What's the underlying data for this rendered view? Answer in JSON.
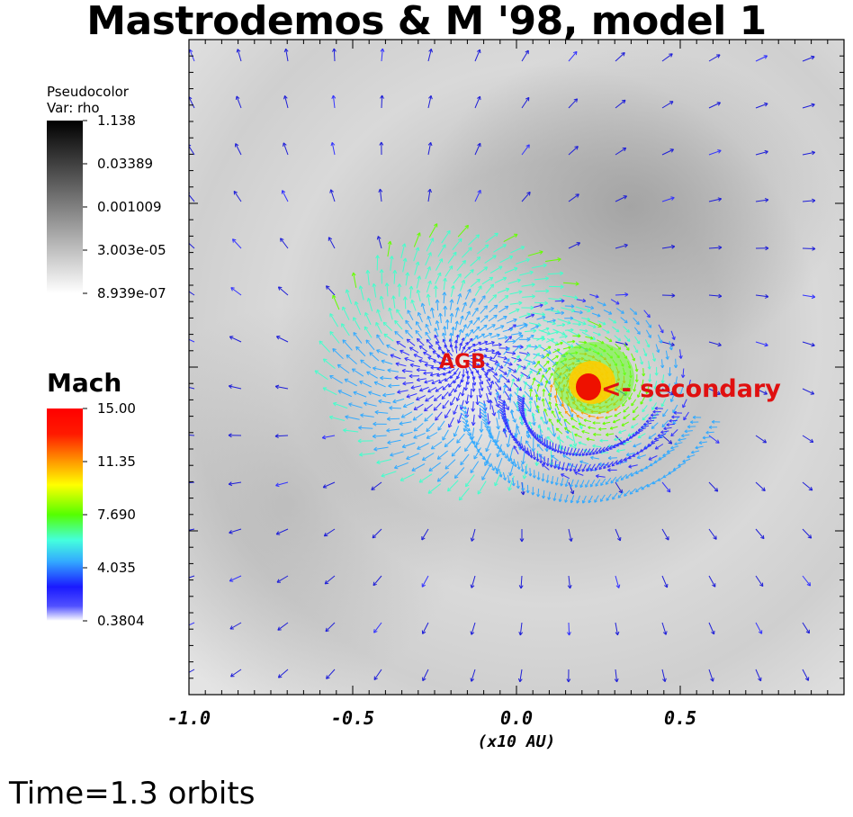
{
  "title": "Mastrodemos & M '98, model 1",
  "time_label": "Time=1.3 orbits",
  "legend_rho": {
    "line1": "Pseudocolor",
    "line2": "Var: rho",
    "ticks": [
      "1.138",
      "0.03389",
      "0.001009",
      "3.003e-05",
      "8.939e-07"
    ]
  },
  "legend_mach": {
    "title": "Mach",
    "ticks": [
      "15.00",
      "11.35",
      "7.690",
      "4.035",
      "0.3804"
    ],
    "colors": [
      "#ff0000",
      "#ff8c00",
      "#ffff00",
      "#66ff00",
      "#44ffcc",
      "#44aaff",
      "#2222ff",
      "#ffffff"
    ]
  },
  "annotations": {
    "agb": "AGB",
    "secondary": "<- secondary"
  },
  "chart_data": {
    "type": "heatmap",
    "description_type": "vector field over density pseudocolor",
    "x_tick_labels": [
      "-1.0",
      "-0.5",
      "0.0",
      "0.5"
    ],
    "x_ticks": [
      -1.0,
      -0.5,
      0.0,
      0.5
    ],
    "xlabel": "(x10 AU)",
    "xlim": [
      -1.0,
      1.0
    ],
    "ylim": [
      -1.0,
      1.0
    ],
    "agb_position": [
      -0.17,
      0.02
    ],
    "secondary_position": [
      0.22,
      -0.06
    ],
    "colorbar_rho_range": [
      8.939e-07,
      1.138
    ],
    "colorbar_mach_range": [
      0.3804,
      15.0
    ]
  }
}
